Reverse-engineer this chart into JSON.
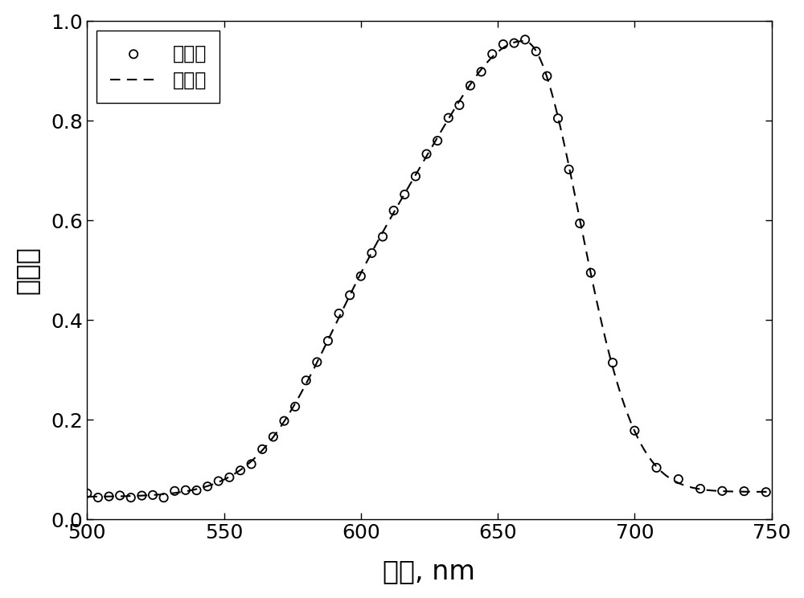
{
  "xlabel": "波长, nm",
  "ylabel": "吸光度",
  "xlim": [
    500,
    750
  ],
  "ylim": [
    0,
    1.0
  ],
  "xticks": [
    500,
    550,
    600,
    650,
    700,
    750
  ],
  "yticks": [
    0.0,
    0.2,
    0.4,
    0.6,
    0.8,
    1.0
  ],
  "legend_labels": [
    "实测值",
    "预测值"
  ],
  "scatter_color": "#000000",
  "line_color": "#000000",
  "background_color": "#ffffff",
  "xlabel_fontsize": 24,
  "ylabel_fontsize": 24,
  "tick_fontsize": 18,
  "legend_fontsize": 17,
  "figure_width": 10.0,
  "figure_height": 7.44
}
